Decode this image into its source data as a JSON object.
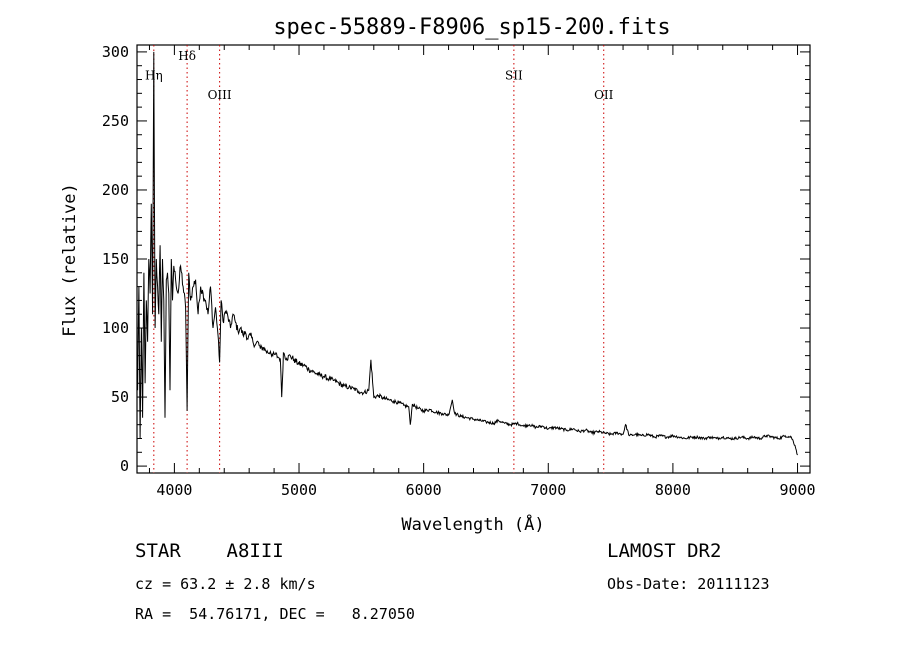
{
  "chart_data": {
    "type": "line",
    "title": "spec-55889-F8906_sp15-200.fits",
    "xlabel": "Wavelength (Å)",
    "ylabel": "Flux (relative)",
    "xlim": [
      3700,
      9100
    ],
    "ylim": [
      -5,
      305
    ],
    "xticks": [
      4000,
      5000,
      6000,
      7000,
      8000,
      9000
    ],
    "yticks": [
      0,
      50,
      100,
      150,
      200,
      250,
      300
    ],
    "grid": false,
    "line_color": "#000000",
    "marker_color": "#cc0000",
    "line_markers": [
      {
        "label": "Hη",
        "x": 3835,
        "label_y": 280
      },
      {
        "label": "Hδ",
        "x": 4102,
        "label_y": 294
      },
      {
        "label": "OIII",
        "x": 4363,
        "label_y": 266
      },
      {
        "label": "SII",
        "x": 6724,
        "label_y": 280
      },
      {
        "label": "OII",
        "x": 7445,
        "label_y": 266
      }
    ],
    "series": [
      {
        "x": [
          3705,
          3715,
          3725,
          3735,
          3745,
          3755,
          3765,
          3775,
          3785,
          3795,
          3805,
          3815,
          3825,
          3835,
          3845,
          3855,
          3865,
          3875,
          3885,
          3895,
          3905,
          3915,
          3925,
          3935,
          3945,
          3955,
          3965,
          3975,
          3985,
          3995,
          4010,
          4030,
          4050,
          4070,
          4090,
          4102,
          4115,
          4130,
          4150,
          4170,
          4190,
          4210,
          4230,
          4250,
          4270,
          4290,
          4310,
          4330,
          4350,
          4363,
          4375,
          4390,
          4410,
          4430,
          4450,
          4470,
          4490,
          4510,
          4530,
          4550,
          4570,
          4590,
          4610,
          4630,
          4650,
          4670,
          4690,
          4710,
          4730,
          4750,
          4770,
          4790,
          4810,
          4830,
          4850,
          4861,
          4875,
          4900,
          4930,
          4960,
          5000,
          5040,
          5080,
          5120,
          5160,
          5200,
          5240,
          5280,
          5320,
          5360,
          5400,
          5440,
          5480,
          5520,
          5560,
          5577,
          5600,
          5640,
          5680,
          5720,
          5760,
          5800,
          5840,
          5880,
          5893,
          5910,
          5950,
          6000,
          6050,
          6100,
          6150,
          6200,
          6230,
          6250,
          6300,
          6350,
          6400,
          6450,
          6500,
          6563,
          6600,
          6650,
          6700,
          6750,
          6800,
          6850,
          6900,
          6950,
          7000,
          7050,
          7100,
          7150,
          7200,
          7250,
          7300,
          7350,
          7400,
          7450,
          7500,
          7550,
          7600,
          7620,
          7650,
          7700,
          7750,
          7800,
          7850,
          7900,
          7950,
          8000,
          8050,
          8100,
          8150,
          8200,
          8250,
          8300,
          8350,
          8400,
          8450,
          8500,
          8550,
          8600,
          8650,
          8700,
          8750,
          8800,
          8850,
          8900,
          8950,
          8980,
          9000
        ],
        "y": [
          55,
          130,
          20,
          100,
          35,
          140,
          60,
          120,
          90,
          150,
          125,
          190,
          110,
          300,
          100,
          150,
          130,
          110,
          160,
          90,
          150,
          120,
          35,
          135,
          140,
          125,
          55,
          150,
          120,
          145,
          135,
          125,
          145,
          130,
          115,
          40,
          140,
          120,
          130,
          135,
          110,
          130,
          125,
          120,
          110,
          130,
          100,
          115,
          95,
          75,
          120,
          105,
          112,
          108,
          100,
          110,
          104,
          98,
          100,
          95,
          97,
          92,
          95,
          90,
          88,
          90,
          85,
          86,
          84,
          82,
          83,
          80,
          81,
          79,
          78,
          50,
          82,
          78,
          80,
          77,
          74,
          73,
          70,
          68,
          66,
          65,
          63,
          62,
          60,
          58,
          57,
          56,
          54,
          53,
          55,
          77,
          50,
          51,
          49,
          48,
          47,
          46,
          44,
          43,
          30,
          45,
          42,
          40,
          41,
          39,
          38,
          37,
          48,
          38,
          36,
          35,
          34,
          33,
          32,
          31,
          33,
          31,
          30,
          31,
          29,
          30,
          28,
          29,
          27,
          28,
          27,
          26,
          27,
          25,
          26,
          24,
          25,
          24,
          23,
          24,
          23,
          30,
          22,
          23,
          22,
          23,
          21,
          22,
          21,
          22,
          21,
          20,
          21,
          21,
          20,
          21,
          20,
          21,
          20,
          20,
          21,
          20,
          21,
          20,
          22,
          21,
          20,
          22,
          21,
          15,
          8
        ]
      }
    ]
  },
  "info": {
    "object_line": "STAR    A8III",
    "survey": "LAMOST DR2",
    "cz": "cz = 63.2 ± 2.8 km/s",
    "obs_date": "Obs-Date: 20111123",
    "coords": "RA =  54.76171, DEC =   8.27050"
  }
}
